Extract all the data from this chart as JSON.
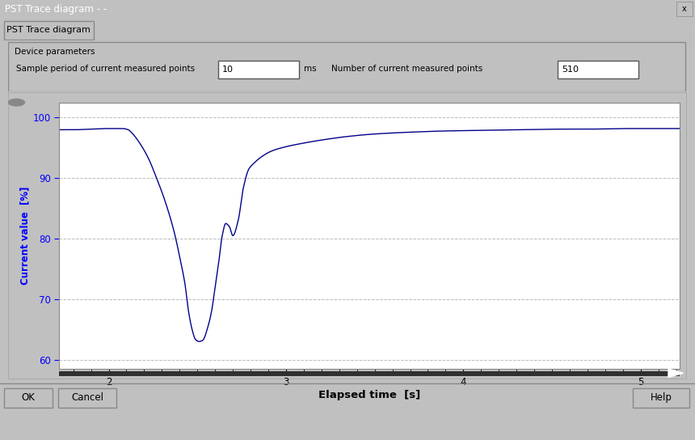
{
  "title": "PST Trace diagram - -",
  "tab_label": "PST Trace diagram",
  "device_params_label": "Device parameters",
  "sample_period_label": "Sample period of current measured points",
  "sample_period_value": "10",
  "sample_period_unit": "ms",
  "num_points_label": "Number of current measured points",
  "num_points_value": "510",
  "xlabel": "Elapsed time  [s]",
  "ylabel": "Current value  [%]",
  "xlim": [
    1.72,
    5.22
  ],
  "ylim": [
    58.5,
    102.5
  ],
  "xticks": [
    2,
    3,
    4,
    5
  ],
  "yticks": [
    60,
    70,
    80,
    90,
    100
  ],
  "grid_color": "#bbbbbb",
  "line_color": "#00008B",
  "plot_bg": "#ffffff",
  "button_ok": "OK",
  "button_cancel": "Cancel",
  "button_help": "Help",
  "window_bg": "#c0c0c0",
  "title_bar_color": "#000080",
  "title_bar_text_color": "#ffffff",
  "curve_t": [
    1.72,
    1.8,
    1.9,
    2.0,
    2.08,
    2.11,
    2.13,
    2.17,
    2.22,
    2.27,
    2.32,
    2.37,
    2.4,
    2.43,
    2.45,
    2.47,
    2.49,
    2.51,
    2.53,
    2.56,
    2.58,
    2.6,
    2.62,
    2.64,
    2.66,
    2.68,
    2.7,
    2.73,
    2.76,
    2.79,
    2.82,
    2.86,
    2.92,
    3.0,
    3.1,
    3.2,
    3.35,
    3.5,
    3.7,
    3.9,
    4.1,
    4.3,
    4.5,
    4.7,
    4.9,
    5.1,
    5.2
  ],
  "curve_v": [
    98.0,
    98.0,
    98.1,
    98.2,
    98.2,
    98.0,
    97.5,
    96.0,
    93.5,
    90.0,
    86.0,
    81.0,
    77.0,
    72.5,
    68.0,
    65.0,
    63.3,
    63.0,
    63.2,
    65.5,
    68.0,
    72.0,
    76.0,
    80.5,
    82.5,
    82.0,
    80.5,
    83.0,
    88.5,
    91.5,
    92.5,
    93.5,
    94.5,
    95.2,
    95.8,
    96.3,
    96.9,
    97.3,
    97.6,
    97.8,
    97.9,
    98.0,
    98.1,
    98.1,
    98.2,
    98.2,
    98.2
  ]
}
